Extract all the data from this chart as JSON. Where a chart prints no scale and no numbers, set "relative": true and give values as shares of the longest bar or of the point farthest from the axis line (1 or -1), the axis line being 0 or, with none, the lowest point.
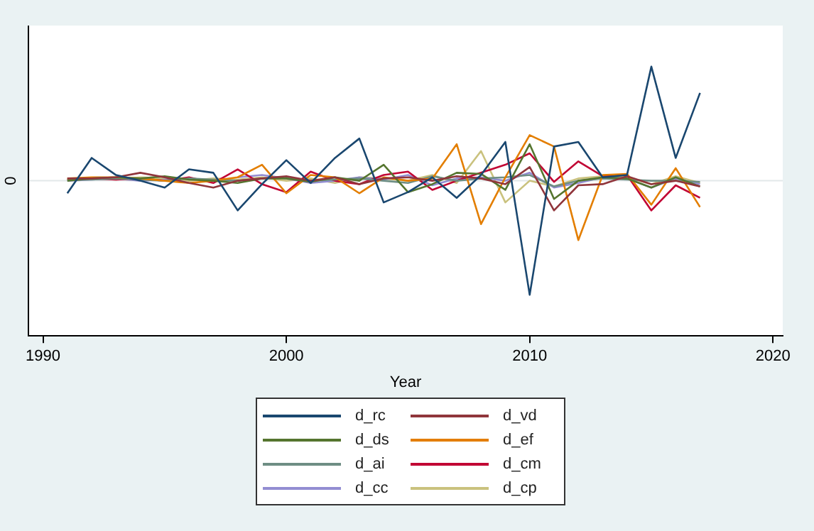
{
  "chart_data": {
    "type": "line",
    "relative": true,
    "xlabel": "Year",
    "xlim": [
      1989.4,
      2020.4
    ],
    "xticks": [
      1990,
      2000,
      2010,
      2020
    ],
    "grid": false,
    "legend": "bottom",
    "marker": "none",
    "line_style": "solid",
    "x": [
      1991,
      1992,
      1993,
      1994,
      1995,
      1996,
      1997,
      1998,
      1999,
      2000,
      2001,
      2002,
      2003,
      2004,
      2005,
      2006,
      2007,
      2008,
      2009,
      2010,
      2011,
      2012,
      2013,
      2014,
      2015,
      2016,
      2017
    ],
    "ref_lines": [
      {
        "axis": "y",
        "value": 0,
        "label": "0",
        "color": "#e3e8ea"
      }
    ],
    "series": [
      {
        "name": "d_rc",
        "color": "#1a476f",
        "values": [
          -0.11,
          0.2,
          0.05,
          0,
          -0.06,
          0.1,
          0.07,
          -0.26,
          -0.03,
          0.18,
          -0.02,
          0.2,
          0.37,
          -0.19,
          -0.1,
          0.03,
          -0.15,
          0.05,
          0.34,
          -1,
          0.3,
          0.34,
          0.03,
          0.05,
          1,
          0.2,
          0.77
        ]
      },
      {
        "name": "d_vd",
        "color": "#90353b",
        "values": [
          0.02,
          0.02,
          0.03,
          0.07,
          0.03,
          -0.02,
          -0.06,
          0.0,
          0.02,
          0.04,
          0.0,
          0.03,
          -0.03,
          0.02,
          0.03,
          0.0,
          0.04,
          0.02,
          -0.03,
          0.12,
          -0.26,
          -0.04,
          -0.03,
          0.04,
          -0.03,
          0.0,
          -0.05
        ]
      },
      {
        "name": "d_ds",
        "color": "#55752f",
        "values": [
          0.0,
          0.02,
          0.03,
          0.02,
          0.04,
          0.01,
          0.0,
          -0.02,
          0.02,
          0.02,
          -0.01,
          0.03,
          0.0,
          0.14,
          -0.1,
          -0.03,
          0.07,
          0.06,
          -0.08,
          0.32,
          -0.16,
          0.0,
          0.03,
          0.02,
          -0.06,
          0.03,
          -0.05
        ]
      },
      {
        "name": "d_ef",
        "color": "#e37e00",
        "values": [
          0.02,
          0.03,
          0.03,
          0.02,
          0.0,
          -0.02,
          0.0,
          0.03,
          0.14,
          -0.11,
          0.05,
          0.03,
          -0.11,
          0.03,
          0.0,
          0.02,
          0.32,
          -0.38,
          0.03,
          0.4,
          0.3,
          -0.52,
          0.05,
          0.06,
          -0.21,
          0.11,
          -0.23
        ]
      },
      {
        "name": "d_ai",
        "color": "#6e8e84",
        "values": [
          0.01,
          0.01,
          0.02,
          0.01,
          0.0,
          0.02,
          0.01,
          0.0,
          0.02,
          0.03,
          0.0,
          0.01,
          0.02,
          0.0,
          -0.02,
          0.04,
          0.0,
          0.02,
          0.03,
          0.05,
          -0.05,
          0.0,
          0.02,
          0.01,
          0.0,
          0.0,
          -0.01
        ]
      },
      {
        "name": "d_cm",
        "color": "#c10534",
        "values": [
          0.01,
          0.02,
          0.01,
          0.02,
          0.0,
          0.03,
          -0.02,
          0.1,
          -0.03,
          -0.1,
          0.08,
          0.0,
          -0.03,
          0.05,
          0.08,
          -0.08,
          0.0,
          0.07,
          0.14,
          0.24,
          -0.01,
          0.17,
          0.04,
          0.05,
          -0.26,
          -0.04,
          -0.15
        ]
      },
      {
        "name": "d_cc",
        "color": "#938dd2",
        "values": [
          0.0,
          0.01,
          0.02,
          0.0,
          0.01,
          0.02,
          null,
          0.03,
          0.05,
          0.02,
          -0.02,
          0.0,
          0.03,
          0.01,
          0.05,
          -0.04,
          0.02,
          0.03,
          0.0,
          0.07,
          -0.06,
          -0.02,
          0.03,
          0.02,
          -0.06,
          0.02,
          -0.03
        ]
      },
      {
        "name": "d_cp",
        "color": "#cac27e",
        "values": [
          0.02,
          0.02,
          0.01,
          0.03,
          0.02,
          0.0,
          0.02,
          0.01,
          0.03,
          0.0,
          0.02,
          -0.02,
          0.03,
          0.02,
          0.0,
          0.05,
          -0.02,
          0.26,
          -0.19,
          0.0,
          -0.05,
          0.02,
          0.04,
          0.03,
          -0.03,
          0.04,
          -0.02
        ]
      }
    ]
  }
}
